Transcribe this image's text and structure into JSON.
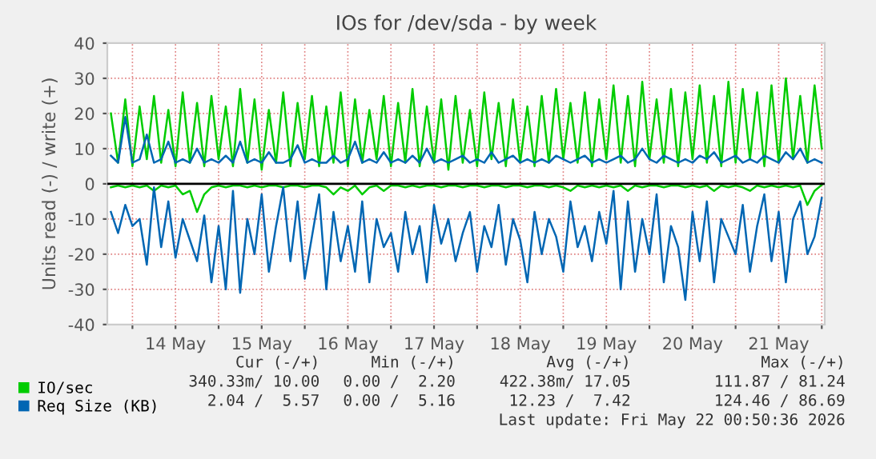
{
  "chart_data": {
    "type": "line",
    "title": "IOs for /dev/sda - by week",
    "ylabel": "Units read (-) / write (+)",
    "x": [
      "2026-05-13T18:00",
      "2026-05-13T20:00",
      "2026-05-13T22:00",
      "2026-05-14T00:00",
      "2026-05-14T02:00",
      "2026-05-14T04:00",
      "2026-05-14T06:00",
      "2026-05-14T08:00",
      "2026-05-14T10:00",
      "2026-05-14T12:00",
      "2026-05-14T14:00",
      "2026-05-14T16:00",
      "2026-05-14T18:00",
      "2026-05-14T20:00",
      "2026-05-14T22:00",
      "2026-05-15T00:00",
      "2026-05-15T02:00",
      "2026-05-15T04:00",
      "2026-05-15T06:00",
      "2026-05-15T08:00",
      "2026-05-15T10:00",
      "2026-05-15T12:00",
      "2026-05-15T14:00",
      "2026-05-15T16:00",
      "2026-05-15T18:00",
      "2026-05-15T20:00",
      "2026-05-15T22:00",
      "2026-05-16T00:00",
      "2026-05-16T02:00",
      "2026-05-16T04:00",
      "2026-05-16T06:00",
      "2026-05-16T08:00",
      "2026-05-16T10:00",
      "2026-05-16T12:00",
      "2026-05-16T14:00",
      "2026-05-16T16:00",
      "2026-05-16T18:00",
      "2026-05-16T20:00",
      "2026-05-16T22:00",
      "2026-05-17T00:00",
      "2026-05-17T02:00",
      "2026-05-17T04:00",
      "2026-05-17T06:00",
      "2026-05-17T08:00",
      "2026-05-17T10:00",
      "2026-05-17T12:00",
      "2026-05-17T14:00",
      "2026-05-17T16:00",
      "2026-05-17T18:00",
      "2026-05-17T20:00",
      "2026-05-17T22:00",
      "2026-05-18T00:00",
      "2026-05-18T02:00",
      "2026-05-18T04:00",
      "2026-05-18T06:00",
      "2026-05-18T08:00",
      "2026-05-18T10:00",
      "2026-05-18T12:00",
      "2026-05-18T14:00",
      "2026-05-18T16:00",
      "2026-05-18T18:00",
      "2026-05-18T20:00",
      "2026-05-18T22:00",
      "2026-05-19T00:00",
      "2026-05-19T02:00",
      "2026-05-19T04:00",
      "2026-05-19T06:00",
      "2026-05-19T08:00",
      "2026-05-19T10:00",
      "2026-05-19T12:00",
      "2026-05-19T14:00",
      "2026-05-19T16:00",
      "2026-05-19T18:00",
      "2026-05-19T20:00",
      "2026-05-19T22:00",
      "2026-05-20T00:00",
      "2026-05-20T02:00",
      "2026-05-20T04:00",
      "2026-05-20T06:00",
      "2026-05-20T08:00",
      "2026-05-20T10:00",
      "2026-05-20T12:00",
      "2026-05-20T14:00",
      "2026-05-20T16:00",
      "2026-05-20T18:00",
      "2026-05-20T20:00",
      "2026-05-20T22:00",
      "2026-05-21T00:00",
      "2026-05-21T02:00",
      "2026-05-21T04:00",
      "2026-05-21T06:00",
      "2026-05-21T08:00",
      "2026-05-21T10:00",
      "2026-05-21T12:00",
      "2026-05-21T14:00",
      "2026-05-21T16:00",
      "2026-05-21T18:00",
      "2026-05-21T20:00",
      "2026-05-21T22:00",
      "2026-05-22T00:00"
    ],
    "series": [
      {
        "name": "IO/sec",
        "color": "#00cc00",
        "values": [
          20,
          6,
          24,
          5,
          22,
          7,
          25,
          6,
          21,
          5,
          26,
          6,
          23,
          5,
          25,
          7,
          22,
          5,
          27,
          6,
          24,
          4,
          21,
          6,
          26,
          5,
          23,
          7,
          25,
          5,
          22,
          6,
          26,
          5,
          24,
          6,
          21,
          7,
          25,
          5,
          23,
          6,
          27,
          5,
          22,
          6,
          24,
          4,
          25,
          6,
          21,
          5,
          26,
          7,
          23,
          5,
          24,
          6,
          22,
          5,
          25,
          6,
          27,
          7,
          23,
          6,
          26,
          5,
          24,
          7,
          28,
          6,
          25,
          5,
          29,
          7,
          24,
          6,
          27,
          5,
          26,
          7,
          28,
          6,
          25,
          5,
          29,
          6,
          27,
          7,
          26,
          5,
          28,
          6,
          30,
          7,
          25,
          6,
          28,
          10
        ]
      },
      {
        "name": "Req Size (KB)",
        "color": "#0066b3",
        "values": [
          8,
          6,
          19,
          6,
          7,
          14,
          6,
          7,
          12,
          6,
          7,
          6,
          10,
          6,
          7,
          6,
          8,
          6,
          12,
          6,
          7,
          6,
          9,
          6,
          6,
          7,
          11,
          6,
          7,
          6,
          6,
          8,
          6,
          7,
          12,
          6,
          7,
          6,
          9,
          6,
          7,
          6,
          8,
          6,
          10,
          6,
          7,
          6,
          7,
          8,
          6,
          7,
          6,
          9,
          6,
          7,
          8,
          6,
          7,
          6,
          7,
          6,
          8,
          7,
          6,
          7,
          8,
          6,
          7,
          6,
          7,
          8,
          6,
          7,
          10,
          7,
          6,
          8,
          7,
          6,
          7,
          6,
          8,
          7,
          9,
          6,
          7,
          8,
          6,
          7,
          6,
          8,
          7,
          6,
          9,
          7,
          10,
          6,
          7,
          6
        ]
      },
      {
        "color": "#00cc00",
        "values": [
          -1,
          -0.5,
          -1,
          -0.5,
          -1,
          -0.5,
          -2,
          -0.5,
          -1,
          -0.5,
          -3,
          -2,
          -8,
          -3,
          -1,
          -0.5,
          -1,
          -0.5,
          -0.5,
          -1,
          -0.5,
          -1,
          -0.5,
          -0.5,
          -1,
          -0.5,
          -0.5,
          -1,
          -0.5,
          -0.5,
          -1,
          -3,
          -1,
          -2,
          -0.5,
          -3,
          -1,
          -0.5,
          -2,
          -0.5,
          -0.5,
          -1,
          -0.5,
          -1,
          -0.5,
          -0.5,
          -1,
          -0.5,
          -0.5,
          -1,
          -0.5,
          -0.5,
          -1,
          -0.5,
          -0.5,
          -1,
          -0.5,
          -0.5,
          -1,
          -0.5,
          -0.5,
          -1,
          -0.5,
          -1,
          -2,
          -0.5,
          -1,
          -0.5,
          -1,
          -0.5,
          -1,
          -0.5,
          -2,
          -0.5,
          -1,
          -0.5,
          -0.5,
          -1,
          -0.5,
          -0.5,
          -1,
          -0.5,
          -1,
          -0.5,
          -2,
          -0.5,
          -1,
          -0.5,
          -1,
          -2,
          -0.5,
          -1,
          -0.5,
          -1,
          -0.5,
          -1,
          -0.5,
          -6,
          -2,
          -0.3
        ]
      },
      {
        "color": "#0066b3",
        "values": [
          -8,
          -14,
          -6,
          -12,
          -10,
          -23,
          -1,
          -18,
          -5,
          -21,
          -10,
          -16,
          -22,
          -9,
          -28,
          -12,
          -30,
          -2,
          -31,
          -10,
          -20,
          -3,
          -25,
          -12,
          -1,
          -22,
          -5,
          -27,
          -15,
          -3,
          -30,
          -8,
          -22,
          -12,
          -25,
          -5,
          -28,
          -10,
          -18,
          -14,
          -25,
          -8,
          -20,
          -12,
          -28,
          -6,
          -17,
          -10,
          -22,
          -14,
          -8,
          -25,
          -12,
          -18,
          -6,
          -23,
          -10,
          -16,
          -28,
          -8,
          -20,
          -10,
          -15,
          -25,
          -5,
          -18,
          -12,
          -22,
          -8,
          -17,
          -2,
          -30,
          -5,
          -25,
          -10,
          -20,
          -3,
          -28,
          -12,
          -18,
          -33,
          -8,
          -22,
          -5,
          -28,
          -10,
          -15,
          -20,
          -6,
          -25,
          -12,
          -3,
          -22,
          -8,
          -28,
          -10,
          -5,
          -20,
          -15,
          -4
        ]
      }
    ],
    "xlim": [
      "2026-05-13T17:00",
      "2026-05-22T00:50"
    ],
    "xticks": [
      {
        "value": "2026-05-14T00:00",
        "label": null
      },
      {
        "value": "2026-05-14T12:00",
        "label": "14 May"
      },
      {
        "value": "2026-05-15T00:00",
        "label": null
      },
      {
        "value": "2026-05-15T12:00",
        "label": "15 May"
      },
      {
        "value": "2026-05-16T00:00",
        "label": null
      },
      {
        "value": "2026-05-16T12:00",
        "label": "16 May"
      },
      {
        "value": "2026-05-17T00:00",
        "label": null
      },
      {
        "value": "2026-05-17T12:00",
        "label": "17 May"
      },
      {
        "value": "2026-05-18T00:00",
        "label": null
      },
      {
        "value": "2026-05-18T12:00",
        "label": "18 May"
      },
      {
        "value": "2026-05-19T00:00",
        "label": null
      },
      {
        "value": "2026-05-19T12:00",
        "label": "19 May"
      },
      {
        "value": "2026-05-20T00:00",
        "label": null
      },
      {
        "value": "2026-05-20T12:00",
        "label": "20 May"
      },
      {
        "value": "2026-05-21T00:00",
        "label": null
      },
      {
        "value": "2026-05-21T12:00",
        "label": "21 May"
      },
      {
        "value": "2026-05-22T00:00",
        "label": null
      }
    ],
    "ylim": [
      -40,
      40
    ],
    "yticks": [
      -40,
      -30,
      -20,
      -10,
      0,
      10,
      20,
      30,
      40
    ],
    "ref_lines": [
      {
        "axis": "y",
        "value": 0,
        "color": "#000000"
      }
    ],
    "grid": true,
    "legend": "bottom left",
    "marker": "none",
    "line_style": "solid",
    "annotations": [
      "Cur (-/+)",
      "Min (-/+)",
      "Avg (-/+)",
      "Max (-/+)",
      "340.33m/ 10.00",
      "0.00 /  2.20",
      "422.38m/ 17.05",
      "111.87 / 81.24",
      "2.04 /  5.57",
      "0.00 /  5.16",
      "12.23 /  7.42",
      "124.46 / 86.69",
      "Last update: Fri May 22 00:50:36 2026"
    ]
  }
}
